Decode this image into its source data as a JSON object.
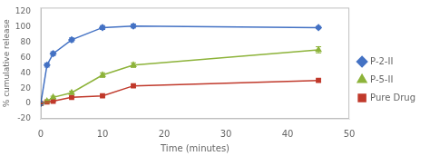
{
  "chart_data": {
    "type": "line",
    "xlabel": "Time (minutes)",
    "ylabel": "% cumulative release",
    "xlim": [
      0,
      50
    ],
    "ylim": [
      -20,
      125
    ],
    "xticks": [
      0,
      10,
      20,
      30,
      40,
      50
    ],
    "yticks": [
      -20,
      0,
      20,
      40,
      60,
      80,
      100,
      120
    ],
    "x": [
      0,
      1,
      2,
      5,
      10,
      15,
      45
    ],
    "series": [
      {
        "name": "P-2-II",
        "color": "#4472C4",
        "marker": "diamond",
        "values": [
          0,
          50,
          65,
          83,
          99,
          101,
          99
        ],
        "yerr": [
          0.5,
          2.5,
          2.5,
          2.5,
          2.5,
          2.5,
          1.5
        ]
      },
      {
        "name": "P-5-II",
        "color": "#8DB33A",
        "marker": "triangle",
        "values": [
          0,
          3,
          8,
          14,
          37,
          50,
          70
        ],
        "yerr": [
          0.3,
          1,
          1.5,
          2,
          3,
          3,
          4
        ]
      },
      {
        "name": "Pure Drug",
        "color": "#C0392B",
        "marker": "square",
        "values": [
          0,
          2,
          3,
          8,
          10,
          23,
          30
        ],
        "yerr": [
          0.3,
          0.5,
          0.5,
          1,
          1.5,
          2,
          2
        ]
      }
    ],
    "grid": false,
    "legend": "right"
  }
}
